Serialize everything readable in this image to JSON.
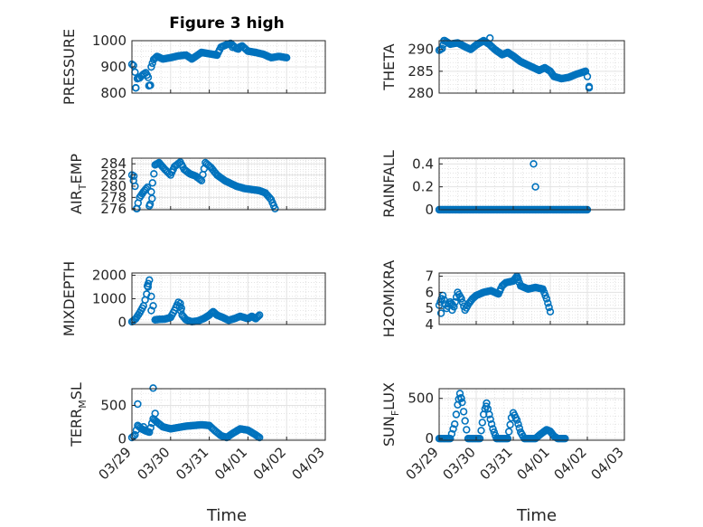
{
  "figure_title": "Figure 3 high",
  "marker_color": "#0072BD",
  "axis_color": "#262626",
  "grid_color": "#d9d9d9",
  "xlabel": "Time",
  "date_ticks": [
    "03/29",
    "03/30",
    "03/31",
    "04/01",
    "04/02",
    "04/03"
  ],
  "chart_data": [
    {
      "type": "scatter",
      "ylabel": "PRESSURE",
      "xlim": [
        "2023-03-29 00:00",
        "2023-04-03 00:00"
      ],
      "x_start": "2023-03-29 00:00",
      "x_end": "2023-04-02 00:00",
      "ylim": [
        800,
        1000
      ],
      "yticks": [
        800,
        900,
        1000
      ],
      "keypoints": [
        [
          0,
          910
        ],
        [
          0.04,
          905
        ],
        [
          0.08,
          880
        ],
        [
          0.1,
          820
        ],
        [
          0.14,
          855
        ],
        [
          0.2,
          858
        ],
        [
          0.28,
          870
        ],
        [
          0.36,
          878
        ],
        [
          0.42,
          860
        ],
        [
          0.46,
          830
        ],
        [
          0.5,
          900
        ],
        [
          0.56,
          928
        ],
        [
          0.65,
          940
        ],
        [
          0.8,
          930
        ],
        [
          1.0,
          935
        ],
        [
          1.2,
          942
        ],
        [
          1.4,
          945
        ],
        [
          1.55,
          930
        ],
        [
          1.65,
          940
        ],
        [
          1.8,
          955
        ],
        [
          2.0,
          950
        ],
        [
          2.2,
          945
        ],
        [
          2.3,
          975
        ],
        [
          2.45,
          985
        ],
        [
          2.55,
          990
        ],
        [
          2.7,
          970
        ],
        [
          2.85,
          980
        ],
        [
          3.0,
          960
        ],
        [
          3.2,
          955
        ],
        [
          3.4,
          948
        ],
        [
          3.6,
          935
        ],
        [
          3.8,
          940
        ],
        [
          4.0,
          935
        ]
      ],
      "outliers": [
        [
          0.1,
          820
        ],
        [
          0.44,
          828
        ],
        [
          0.48,
          830
        ],
        [
          2.6,
          975
        ],
        [
          2.75,
          968
        ]
      ]
    },
    {
      "type": "scatter",
      "ylabel": "THETA",
      "x_start": "2023-03-29 00:00",
      "x_end": "2023-04-02 00:00",
      "ylim": [
        280,
        292
      ],
      "yticks": [
        280,
        285,
        290
      ],
      "keypoints": [
        [
          0,
          289.8
        ],
        [
          0.08,
          290.2
        ],
        [
          0.15,
          292.0
        ],
        [
          0.3,
          291.2
        ],
        [
          0.5,
          291.5
        ],
        [
          0.7,
          290.6
        ],
        [
          0.85,
          290.0
        ],
        [
          1.0,
          291.0
        ],
        [
          1.2,
          292.0
        ],
        [
          1.35,
          291.2
        ],
        [
          1.5,
          290.0
        ],
        [
          1.7,
          288.8
        ],
        [
          1.85,
          289.3
        ],
        [
          2.0,
          288.5
        ],
        [
          2.2,
          287.2
        ],
        [
          2.4,
          286.4
        ],
        [
          2.5,
          286.0
        ],
        [
          2.7,
          285.2
        ],
        [
          2.85,
          285.8
        ],
        [
          3.0,
          285.0
        ],
        [
          3.1,
          283.8
        ],
        [
          3.3,
          283.3
        ],
        [
          3.5,
          283.6
        ],
        [
          3.7,
          284.3
        ],
        [
          3.95,
          285.0
        ],
        [
          4.0,
          283.8
        ],
        [
          4.05,
          281.5
        ]
      ],
      "outliers": [
        [
          0.13,
          292.0
        ],
        [
          1.37,
          292.6
        ],
        [
          4.05,
          281.2
        ]
      ]
    },
    {
      "type": "scatter",
      "ylabel": "AIR_TEMP",
      "ylabel_main": "AIR",
      "ylabel_sub": "T",
      "ylabel_tail": "EMP",
      "x_start": "2023-03-29 00:00",
      "x_end": "2023-04-02 00:00",
      "ylim": [
        275.8,
        285
      ],
      "yticks": [
        276,
        278,
        280,
        282,
        284
      ],
      "keypoints": [
        [
          0,
          282.0
        ],
        [
          0.08,
          280.0
        ],
        [
          0.12,
          276.0
        ],
        [
          0.2,
          278.0
        ],
        [
          0.3,
          279.0
        ],
        [
          0.4,
          279.8
        ],
        [
          0.45,
          276.5
        ],
        [
          0.5,
          279.0
        ],
        [
          0.6,
          283.8
        ],
        [
          0.7,
          284.2
        ],
        [
          0.85,
          283.0
        ],
        [
          1.0,
          282.0
        ],
        [
          1.1,
          283.5
        ],
        [
          1.25,
          284.3
        ],
        [
          1.35,
          283.0
        ],
        [
          1.5,
          282.2
        ],
        [
          1.65,
          281.8
        ],
        [
          1.8,
          281.0
        ],
        [
          1.9,
          284.2
        ],
        [
          2.05,
          283.3
        ],
        [
          2.2,
          282.0
        ],
        [
          2.4,
          281.0
        ],
        [
          2.55,
          280.5
        ],
        [
          2.7,
          280.0
        ],
        [
          2.9,
          279.6
        ],
        [
          3.1,
          279.4
        ],
        [
          3.3,
          279.2
        ],
        [
          3.45,
          278.8
        ],
        [
          3.6,
          277.6
        ],
        [
          3.7,
          276.0
        ]
      ],
      "outliers": [
        [
          0.05,
          281.8
        ],
        [
          0.13,
          276.0
        ],
        [
          0.47,
          276.8
        ],
        [
          0.52,
          277.8
        ]
      ]
    },
    {
      "type": "scatter",
      "ylabel": "RAINFALL",
      "x_start": "2023-03-29 00:00",
      "x_end": "2023-04-02 00:00",
      "ylim": [
        0,
        0.45
      ],
      "yticks": [
        0,
        0.2,
        0.4
      ],
      "keypoints": [
        [
          0,
          0
        ],
        [
          4.0,
          0
        ]
      ],
      "outliers": [
        [
          2.55,
          0.4
        ],
        [
          2.6,
          0.2
        ]
      ]
    },
    {
      "type": "scatter",
      "ylabel": "MIXDEPTH",
      "x_start": "2023-03-29 00:00",
      "x_end": "2023-04-02 00:00",
      "ylim": [
        -100,
        2100
      ],
      "yticks": [
        0,
        1000,
        2000
      ],
      "keypoints": [
        [
          0,
          20
        ],
        [
          0.1,
          150
        ],
        [
          0.2,
          400
        ],
        [
          0.3,
          700
        ],
        [
          0.38,
          1200
        ],
        [
          0.45,
          1800
        ],
        [
          0.5,
          1100
        ],
        [
          0.55,
          700
        ],
        [
          0.6,
          100
        ],
        [
          0.7,
          120
        ],
        [
          0.85,
          130
        ],
        [
          1.0,
          200
        ],
        [
          1.1,
          500
        ],
        [
          1.2,
          850
        ],
        [
          1.3,
          300
        ],
        [
          1.4,
          100
        ],
        [
          1.55,
          20
        ],
        [
          1.7,
          50
        ],
        [
          1.85,
          150
        ],
        [
          2.0,
          300
        ],
        [
          2.1,
          450
        ],
        [
          2.2,
          300
        ],
        [
          2.35,
          200
        ],
        [
          2.5,
          80
        ],
        [
          2.65,
          150
        ],
        [
          2.8,
          250
        ],
        [
          2.9,
          200
        ],
        [
          3.0,
          150
        ],
        [
          3.1,
          250
        ],
        [
          3.2,
          150
        ],
        [
          3.3,
          300
        ]
      ],
      "outliers": [
        [
          0.4,
          1550
        ],
        [
          0.42,
          1650
        ],
        [
          0.5,
          500
        ],
        [
          1.25,
          800
        ],
        [
          1.28,
          600
        ]
      ]
    },
    {
      "type": "scatter",
      "ylabel": "H2OMIXRA",
      "x_start": "2023-03-29 00:00",
      "x_end": "2023-04-02 00:00",
      "ylim": [
        4,
        7.2
      ],
      "yticks": [
        4,
        5,
        6,
        7
      ],
      "keypoints": [
        [
          0,
          5.2
        ],
        [
          0.1,
          5.8
        ],
        [
          0.2,
          5.0
        ],
        [
          0.3,
          5.4
        ],
        [
          0.4,
          5.1
        ],
        [
          0.5,
          6.0
        ],
        [
          0.6,
          5.6
        ],
        [
          0.7,
          4.9
        ],
        [
          0.8,
          5.3
        ],
        [
          0.9,
          5.6
        ],
        [
          1.0,
          5.8
        ],
        [
          1.2,
          6.0
        ],
        [
          1.4,
          6.1
        ],
        [
          1.6,
          5.9
        ],
        [
          1.7,
          6.4
        ],
        [
          1.8,
          6.6
        ],
        [
          2.0,
          6.7
        ],
        [
          2.1,
          7.0
        ],
        [
          2.2,
          6.4
        ],
        [
          2.4,
          6.2
        ],
        [
          2.6,
          6.3
        ],
        [
          2.8,
          6.2
        ],
        [
          2.9,
          5.6
        ],
        [
          3.0,
          4.8
        ]
      ],
      "outliers": [
        [
          0.05,
          4.7
        ],
        [
          0.35,
          4.9
        ],
        [
          2.12,
          6.9
        ]
      ]
    },
    {
      "type": "scatter",
      "ylabel": "TERR_MSL",
      "ylabel_main": "TERR",
      "ylabel_sub": "M",
      "ylabel_tail": "SL",
      "x_start": "2023-03-29 00:00",
      "x_end": "2023-04-02 00:00",
      "ylim": [
        -20,
        750
      ],
      "yticks": [
        0,
        500
      ],
      "keypoints": [
        [
          0,
          20
        ],
        [
          0.08,
          60
        ],
        [
          0.15,
          200
        ],
        [
          0.25,
          150
        ],
        [
          0.35,
          120
        ],
        [
          0.45,
          100
        ],
        [
          0.55,
          300
        ],
        [
          0.65,
          250
        ],
        [
          0.8,
          180
        ],
        [
          1.0,
          150
        ],
        [
          1.2,
          170
        ],
        [
          1.4,
          190
        ],
        [
          1.6,
          200
        ],
        [
          1.8,
          210
        ],
        [
          2.0,
          200
        ],
        [
          2.15,
          120
        ],
        [
          2.3,
          50
        ],
        [
          2.45,
          20
        ],
        [
          2.6,
          80
        ],
        [
          2.8,
          150
        ],
        [
          3.0,
          130
        ],
        [
          3.2,
          60
        ],
        [
          3.3,
          20
        ]
      ],
      "outliers": [
        [
          0.15,
          520
        ],
        [
          0.3,
          180
        ],
        [
          0.55,
          760
        ],
        [
          0.6,
          380
        ]
      ]
    },
    {
      "type": "scatter",
      "ylabel": "SUN_FLUX",
      "ylabel_main": "SUN",
      "ylabel_sub": "F",
      "ylabel_tail": "LUX",
      "x_start": "2023-03-29 00:00",
      "x_end": "2023-04-02 00:00",
      "ylim": [
        -20,
        620
      ],
      "yticks": [
        0,
        500
      ],
      "keypoints": [
        [
          0,
          0
        ],
        [
          0.3,
          0
        ],
        [
          0.42,
          180
        ],
        [
          0.5,
          420
        ],
        [
          0.56,
          560
        ],
        [
          0.62,
          450
        ],
        [
          0.7,
          220
        ],
        [
          0.78,
          0
        ],
        [
          1.1,
          0
        ],
        [
          1.2,
          300
        ],
        [
          1.28,
          440
        ],
        [
          1.35,
          300
        ],
        [
          1.45,
          120
        ],
        [
          1.55,
          0
        ],
        [
          1.85,
          0
        ],
        [
          1.95,
          260
        ],
        [
          2.0,
          320
        ],
        [
          2.1,
          230
        ],
        [
          2.2,
          80
        ],
        [
          2.3,
          0
        ],
        [
          2.6,
          0
        ],
        [
          2.75,
          60
        ],
        [
          2.9,
          110
        ],
        [
          3.0,
          90
        ],
        [
          3.1,
          30
        ],
        [
          3.2,
          0
        ],
        [
          3.4,
          0
        ]
      ],
      "outliers": [
        [
          0.6,
          500
        ],
        [
          1.27,
          400
        ]
      ]
    }
  ]
}
